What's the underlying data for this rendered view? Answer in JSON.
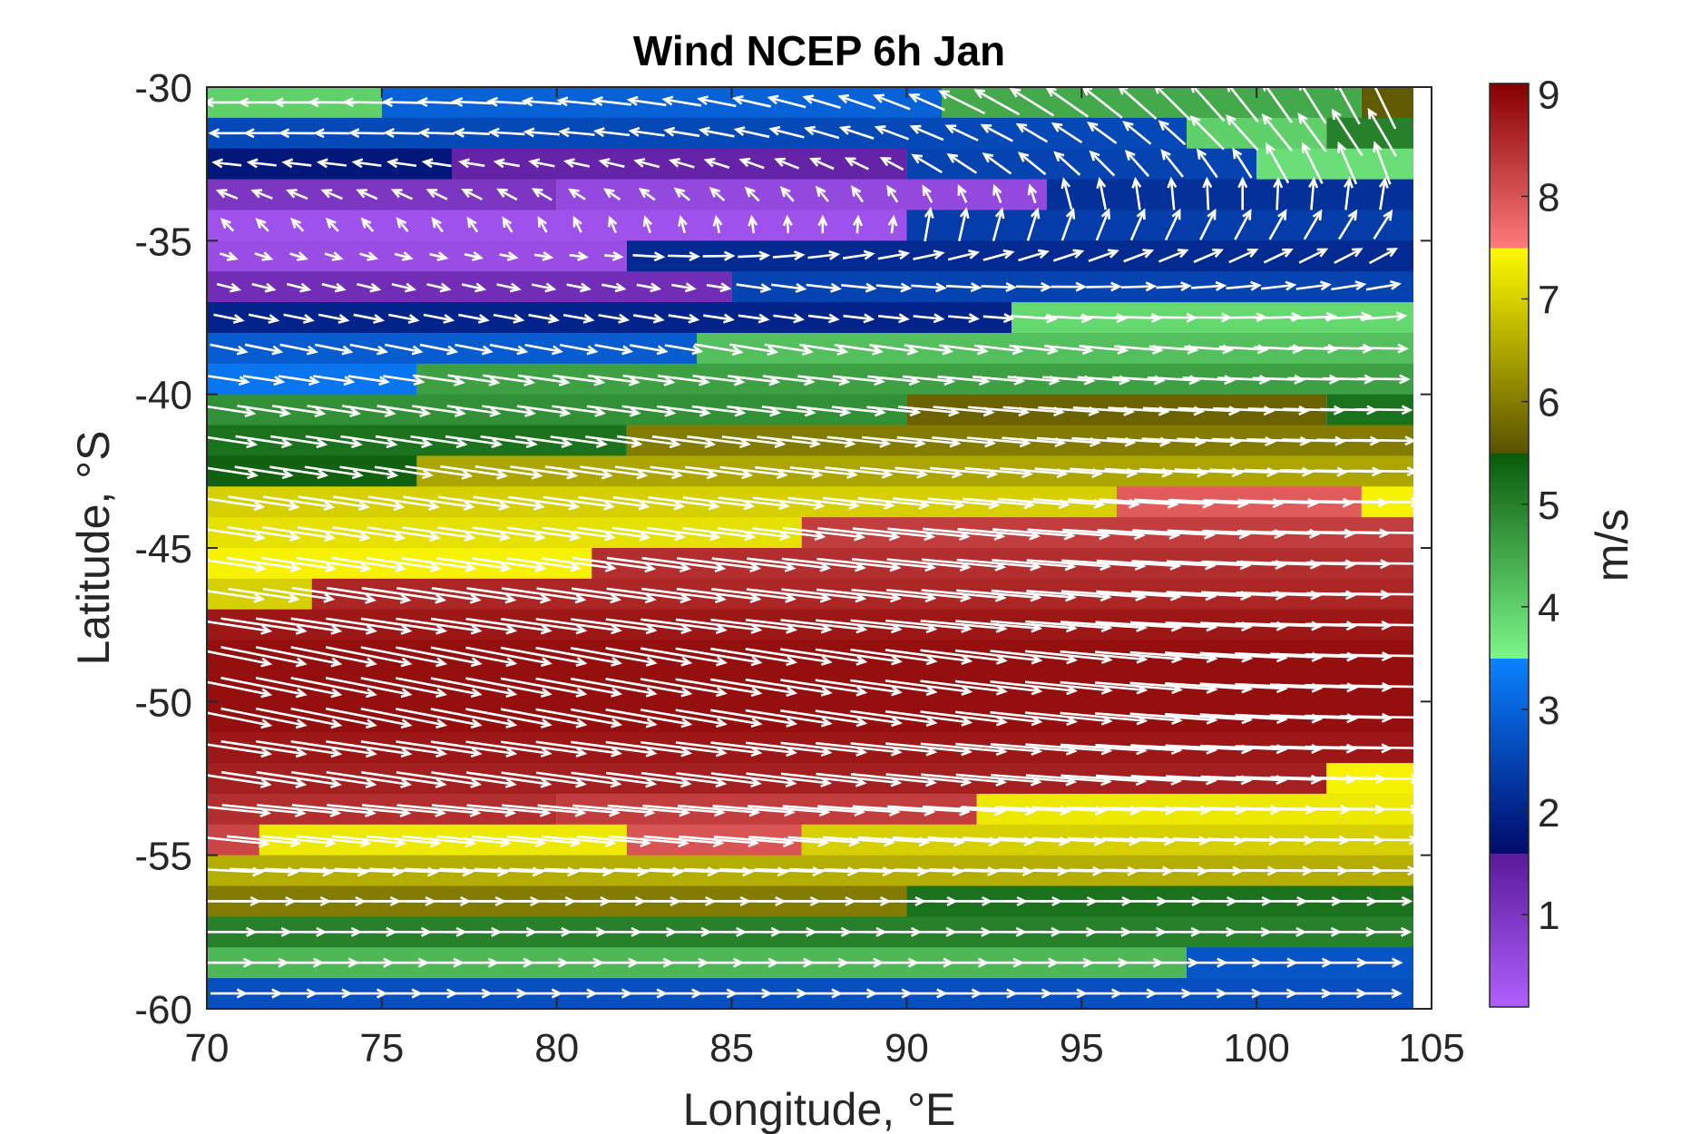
{
  "chart_data": {
    "type": "heatmap",
    "title": "Wind NCEP 6h Jan",
    "xlabel": "Longitude, °E",
    "ylabel": "Latitude, °S",
    "xlim": [
      70,
      105
    ],
    "ylim": [
      -60,
      -30
    ],
    "xticks": [
      70,
      75,
      80,
      85,
      90,
      95,
      100,
      105
    ],
    "yticks": [
      -30,
      -35,
      -40,
      -45,
      -50,
      -55,
      -60
    ],
    "colorbar": {
      "label": "m/s",
      "range": [
        0.1,
        9.1
      ],
      "ticks": [
        1,
        2,
        3,
        4,
        5,
        6,
        7,
        8,
        9
      ],
      "stops": [
        {
          "v": 0.1,
          "color": "#b060ff"
        },
        {
          "v": 1.6,
          "color": "#5a1a9a"
        },
        {
          "v": 1.6,
          "color": "#000a6a"
        },
        {
          "v": 3.5,
          "color": "#0a82ff"
        },
        {
          "v": 3.5,
          "color": "#7cf78a"
        },
        {
          "v": 5.5,
          "color": "#0a5a0a"
        },
        {
          "v": 5.5,
          "color": "#5a5200"
        },
        {
          "v": 7.5,
          "color": "#fffa00"
        },
        {
          "v": 7.5,
          "color": "#ff7a7a"
        },
        {
          "v": 9.1,
          "color": "#860000"
        }
      ]
    },
    "grid": "off",
    "rows": [
      {
        "lat": -30.5,
        "segments": [
          [
            70,
            75,
            4.0
          ],
          [
            75,
            91,
            3.0
          ],
          [
            91,
            103,
            4.5
          ],
          [
            103,
            105,
            5.6
          ]
        ]
      },
      {
        "lat": -31.5,
        "segments": [
          [
            70,
            98,
            2.6
          ],
          [
            98,
            102,
            4.0
          ],
          [
            102,
            105,
            5.0
          ]
        ]
      },
      {
        "lat": -32.5,
        "segments": [
          [
            70,
            77,
            1.8
          ],
          [
            77,
            90,
            1.4
          ],
          [
            90,
            100,
            2.5
          ],
          [
            100,
            105,
            3.8
          ]
        ]
      },
      {
        "lat": -33.5,
        "segments": [
          [
            70,
            80,
            1.0
          ],
          [
            80,
            94,
            0.6
          ],
          [
            94,
            105,
            2.2
          ]
        ]
      },
      {
        "lat": -34.5,
        "segments": [
          [
            70,
            90,
            0.4
          ],
          [
            90,
            105,
            2.4
          ]
        ]
      },
      {
        "lat": -35.5,
        "segments": [
          [
            70,
            82,
            0.5
          ],
          [
            82,
            105,
            2.1
          ]
        ]
      },
      {
        "lat": -36.5,
        "segments": [
          [
            70,
            85,
            1.2
          ],
          [
            85,
            105,
            2.5
          ]
        ]
      },
      {
        "lat": -37.5,
        "segments": [
          [
            70,
            93,
            2.0
          ],
          [
            93,
            105,
            3.9
          ]
        ]
      },
      {
        "lat": -38.5,
        "segments": [
          [
            70,
            84,
            2.9
          ],
          [
            84,
            105,
            4.2
          ]
        ]
      },
      {
        "lat": -39.5,
        "segments": [
          [
            70,
            76,
            3.3
          ],
          [
            76,
            105,
            4.6
          ]
        ]
      },
      {
        "lat": -40.5,
        "segments": [
          [
            70,
            90,
            4.8
          ],
          [
            90,
            102,
            5.7
          ],
          [
            102,
            105,
            5.2
          ]
        ]
      },
      {
        "lat": -41.5,
        "segments": [
          [
            70,
            82,
            5.2
          ],
          [
            82,
            105,
            6.0
          ]
        ]
      },
      {
        "lat": -42.5,
        "segments": [
          [
            70,
            76,
            5.4
          ],
          [
            76,
            105,
            6.5
          ]
        ]
      },
      {
        "lat": -43.5,
        "segments": [
          [
            70,
            96,
            7.0
          ],
          [
            96,
            103,
            7.9
          ],
          [
            103,
            105,
            7.4
          ]
        ]
      },
      {
        "lat": -44.5,
        "segments": [
          [
            70,
            87,
            7.2
          ],
          [
            87,
            105,
            8.3
          ]
        ]
      },
      {
        "lat": -45.5,
        "segments": [
          [
            70,
            81,
            7.4
          ],
          [
            81,
            105,
            8.5
          ]
        ]
      },
      {
        "lat": -46.5,
        "segments": [
          [
            70,
            73,
            7.0
          ],
          [
            73,
            105,
            8.6
          ]
        ]
      },
      {
        "lat": -47.5,
        "segments": [
          [
            70,
            105,
            8.8
          ]
        ]
      },
      {
        "lat": -48.5,
        "segments": [
          [
            70,
            105,
            8.9
          ]
        ]
      },
      {
        "lat": -49.5,
        "segments": [
          [
            70,
            105,
            8.9
          ]
        ]
      },
      {
        "lat": -50.5,
        "segments": [
          [
            70,
            105,
            8.9
          ]
        ]
      },
      {
        "lat": -51.5,
        "segments": [
          [
            70,
            105,
            8.8
          ]
        ]
      },
      {
        "lat": -52.5,
        "segments": [
          [
            70,
            102,
            8.7
          ],
          [
            102,
            105,
            7.4
          ]
        ]
      },
      {
        "lat": -53.5,
        "segments": [
          [
            70,
            80,
            8.5
          ],
          [
            80,
            92,
            8.3
          ],
          [
            92,
            105,
            7.3
          ]
        ]
      },
      {
        "lat": -54.5,
        "segments": [
          [
            70,
            71.5,
            8.2
          ],
          [
            71.5,
            82,
            7.3
          ],
          [
            82,
            87,
            8.0
          ],
          [
            87,
            105,
            7.0
          ]
        ]
      },
      {
        "lat": -55.5,
        "segments": [
          [
            70,
            105,
            6.6
          ]
        ]
      },
      {
        "lat": -56.5,
        "segments": [
          [
            70,
            90,
            6.0
          ],
          [
            90,
            105,
            5.2
          ]
        ]
      },
      {
        "lat": -57.5,
        "segments": [
          [
            70,
            105,
            5.0
          ]
        ]
      },
      {
        "lat": -58.5,
        "segments": [
          [
            70,
            98,
            4.3
          ],
          [
            98,
            105,
            2.8
          ]
        ]
      },
      {
        "lat": -59.5,
        "segments": [
          [
            70,
            105,
            2.7
          ]
        ]
      }
    ],
    "vectors": {
      "color": "#ffffff",
      "rows": [
        {
          "lat": -30.5,
          "u": -1.0,
          "v": 0.0,
          "u_east": -0.4,
          "v_east": 1.0
        },
        {
          "lat": -31.5,
          "u": -1.0,
          "v": 0.0,
          "u_east": -0.5,
          "v_east": 1.0
        },
        {
          "lat": -32.5,
          "u": -0.9,
          "v": 0.1,
          "u_east": -0.3,
          "v_east": 1.0
        },
        {
          "lat": -33.5,
          "u": -0.5,
          "v": 0.2,
          "u_east": 0.2,
          "v_east": 1.0
        },
        {
          "lat": -34.5,
          "u": -0.2,
          "v": 0.2,
          "u_east": 0.6,
          "v_east": 0.9
        },
        {
          "lat": -35.5,
          "u": 0.3,
          "v": -0.1,
          "u_east": 0.9,
          "v_east": 0.5
        },
        {
          "lat": -36.5,
          "u": 0.8,
          "v": -0.2,
          "u_east": 1.0,
          "v_east": 0.2
        },
        {
          "lat": -37.5,
          "u": 1.0,
          "v": -0.2,
          "u_east": 1.0,
          "v_east": 0.1
        },
        {
          "lat": -38.5,
          "u": 1.0,
          "v": -0.2,
          "u_east": 1.0,
          "v_east": 0.0
        },
        {
          "lat": -39.5,
          "u": 1.0,
          "v": -0.15,
          "u_east": 1.0,
          "v_east": 0.0
        },
        {
          "lat": -40.5,
          "u": 1.0,
          "v": -0.15,
          "u_east": 1.0,
          "v_east": 0.0
        },
        {
          "lat": -41.5,
          "u": 1.0,
          "v": -0.15,
          "u_east": 1.0,
          "v_east": 0.0
        },
        {
          "lat": -42.5,
          "u": 1.0,
          "v": -0.15,
          "u_east": 1.0,
          "v_east": 0.0
        },
        {
          "lat": -43.5,
          "u": 1.0,
          "v": -0.15,
          "u_east": 1.0,
          "v_east": 0.0
        },
        {
          "lat": -44.5,
          "u": 1.0,
          "v": -0.15,
          "u_east": 1.0,
          "v_east": 0.0
        },
        {
          "lat": -45.5,
          "u": 1.0,
          "v": -0.15,
          "u_east": 1.0,
          "v_east": 0.0
        },
        {
          "lat": -46.5,
          "u": 1.0,
          "v": -0.15,
          "u_east": 1.0,
          "v_east": 0.0
        },
        {
          "lat": -47.5,
          "u": 1.0,
          "v": -0.15,
          "u_east": 1.0,
          "v_east": 0.0
        },
        {
          "lat": -48.5,
          "u": 1.0,
          "v": -0.2,
          "u_east": 1.0,
          "v_east": 0.0
        },
        {
          "lat": -49.5,
          "u": 1.0,
          "v": -0.2,
          "u_east": 1.0,
          "v_east": 0.0
        },
        {
          "lat": -50.5,
          "u": 1.0,
          "v": -0.2,
          "u_east": 1.0,
          "v_east": 0.0
        },
        {
          "lat": -51.5,
          "u": 1.0,
          "v": -0.15,
          "u_east": 1.0,
          "v_east": 0.0
        },
        {
          "lat": -52.5,
          "u": 1.0,
          "v": -0.15,
          "u_east": 1.0,
          "v_east": 0.0
        },
        {
          "lat": -53.5,
          "u": 1.0,
          "v": -0.1,
          "u_east": 1.0,
          "v_east": 0.0
        },
        {
          "lat": -54.5,
          "u": 1.0,
          "v": -0.1,
          "u_east": 1.0,
          "v_east": 0.0
        },
        {
          "lat": -55.5,
          "u": 1.0,
          "v": -0.05,
          "u_east": 1.0,
          "v_east": 0.0
        },
        {
          "lat": -56.5,
          "u": 1.0,
          "v": 0.0,
          "u_east": 1.0,
          "v_east": 0.0
        },
        {
          "lat": -57.5,
          "u": 1.0,
          "v": 0.0,
          "u_east": 1.0,
          "v_east": 0.0
        },
        {
          "lat": -58.5,
          "u": 1.0,
          "v": 0.0,
          "u_east": 1.0,
          "v_east": 0.0
        },
        {
          "lat": -59.5,
          "u": 1.0,
          "v": 0.0,
          "u_east": 1.0,
          "v_east": 0.0
        }
      ]
    }
  }
}
